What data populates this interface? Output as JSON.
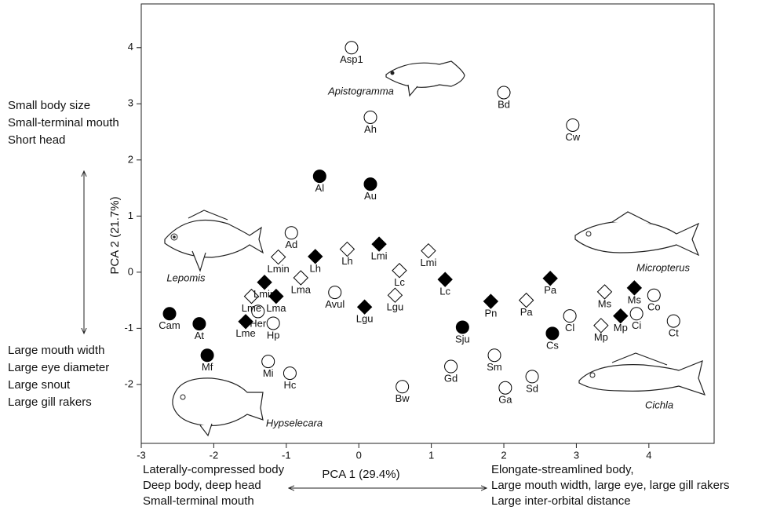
{
  "chart_data": {
    "type": "scatter",
    "xlabel": "PCA 1 (29.4%)",
    "ylabel": "PCA 2 (21.7%)",
    "xlim": [
      -3,
      4.9
    ],
    "ylim": [
      -3.05,
      4.78
    ],
    "xticks": [
      -3,
      -2,
      -1,
      0,
      1,
      2,
      3,
      4
    ],
    "yticks": [
      -2,
      -1,
      0,
      1,
      2,
      3,
      4
    ],
    "series": [
      {
        "marker": "circle",
        "filled": false,
        "color": "#000000",
        "x": [
          -0.1,
          2.0,
          0.16,
          2.95,
          -0.93,
          -0.33,
          -1.39,
          -1.18,
          -1.25,
          -0.95,
          1.27,
          1.87,
          2.02,
          2.39,
          0.6,
          2.91,
          4.07,
          3.83,
          4.34
        ],
        "values": [
          4.0,
          3.2,
          2.76,
          2.62,
          0.7,
          -0.36,
          -0.7,
          -0.91,
          -1.59,
          -1.8,
          -1.68,
          -1.48,
          -2.06,
          -1.86,
          -2.04,
          -0.78,
          -0.41,
          -0.74,
          -0.87
        ],
        "labels": [
          "Asp1",
          "Bd",
          "Ah",
          "Cw",
          "Ad",
          "Avul",
          "Her",
          "Hp",
          "Mi",
          "Hc",
          "Gd",
          "Sm",
          "Ga",
          "Sd",
          "Bw",
          "Cl",
          "Co",
          "Ci",
          "Ct"
        ]
      },
      {
        "marker": "circle",
        "filled": true,
        "color": "#000000",
        "x": [
          -0.54,
          0.16,
          -2.61,
          -2.2,
          -2.09,
          1.43,
          2.67
        ],
        "values": [
          1.71,
          1.57,
          -0.74,
          -0.92,
          -1.48,
          -0.98,
          -1.09
        ],
        "labels": [
          "Al",
          "Au",
          "Cam",
          "At",
          "Mf",
          "Sju",
          "Cs"
        ]
      },
      {
        "marker": "diamond",
        "filled": false,
        "color": "#000000",
        "x": [
          -1.11,
          -0.16,
          0.56,
          0.96,
          -0.8,
          -1.48,
          0.5,
          2.31,
          3.39,
          3.34
        ],
        "values": [
          0.27,
          0.41,
          0.03,
          0.38,
          -0.1,
          -0.43,
          -0.41,
          -0.5,
          -0.35,
          -0.95
        ],
        "labels": [
          "Lmin",
          "Lh",
          "Lc",
          "Lmi",
          "Lma",
          "Lme",
          "Lgu",
          "Pa",
          "Ms",
          "Mp"
        ]
      },
      {
        "marker": "diamond",
        "filled": true,
        "color": "#000000",
        "x": [
          -0.6,
          0.28,
          1.19,
          2.64,
          1.82,
          3.8,
          3.61,
          -1.3,
          -1.14,
          -1.56,
          0.08
        ],
        "values": [
          0.28,
          0.5,
          -0.13,
          -0.11,
          -0.52,
          -0.28,
          -0.78,
          -0.18,
          -0.43,
          -0.88,
          -0.62
        ],
        "labels": [
          "Lh",
          "Lmi",
          "Lc",
          "Pa",
          "Pn",
          "Ms",
          "Mp",
          "Lmin",
          "Lma",
          "Lme",
          "Lgu"
        ]
      }
    ],
    "y_annotations": {
      "top": [
        "Small body size",
        "Small-terminal mouth",
        "Short head"
      ],
      "bottom": [
        "Large mouth width",
        "Large eye diameter",
        "Large snout",
        "Large gill rakers"
      ]
    },
    "x_annotations": {
      "left": [
        "Laterally-compressed body",
        "Deep body, deep head",
        "Small-terminal mouth"
      ],
      "right": [
        "Elongate-streamlined body,",
        "Large mouth width, large eye, large gill rakers",
        "Large inter-orbital distance"
      ]
    },
    "fish_labels": [
      "Apistogramma",
      "Lepomis",
      "Micropterus",
      "Hypselecara",
      "Cichla"
    ]
  }
}
